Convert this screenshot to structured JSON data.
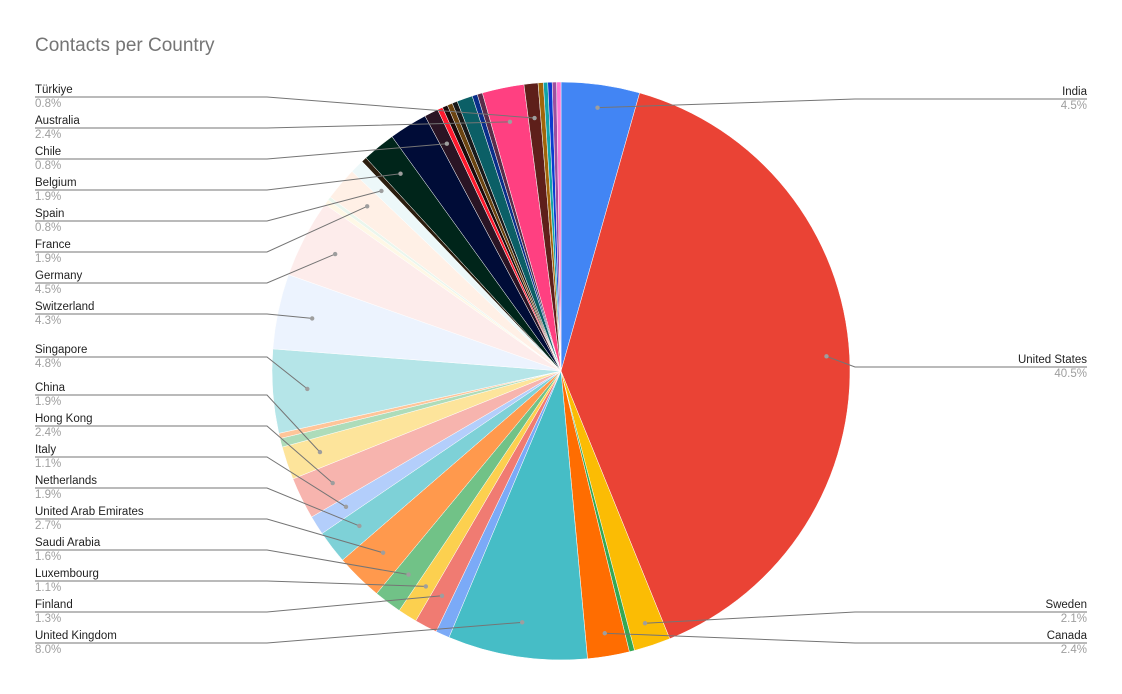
{
  "chart_data": {
    "type": "pie",
    "title": "Contacts per Country",
    "legend_position": "labeled",
    "center": [
      561,
      371
    ],
    "radius": 289,
    "slices": [
      {
        "name": "India",
        "value": 4.5,
        "color": "#4285f4",
        "labeled": true
      },
      {
        "name": "United States",
        "value": 40.5,
        "color": "#ea4335",
        "labeled": true
      },
      {
        "name": "Sweden",
        "value": 2.1,
        "color": "#fbbc04",
        "labeled": true
      },
      {
        "name": "",
        "value": 0.3,
        "color": "#34a853",
        "labeled": false
      },
      {
        "name": "Canada",
        "value": 2.4,
        "color": "#ff6d01",
        "labeled": true
      },
      {
        "name": "United Kingdom",
        "value": 8.0,
        "color": "#46bdc6",
        "labeled": true
      },
      {
        "name": "",
        "value": 0.8,
        "color": "#7baaf7",
        "labeled": false
      },
      {
        "name": "Finland",
        "value": 1.3,
        "color": "#f07b72",
        "labeled": true
      },
      {
        "name": "Luxembourg",
        "value": 1.1,
        "color": "#fcd04f",
        "labeled": true
      },
      {
        "name": "Saudi Arabia",
        "value": 1.6,
        "color": "#71c287",
        "labeled": true
      },
      {
        "name": "United Arab Emirates",
        "value": 2.7,
        "color": "#ff994d",
        "labeled": true
      },
      {
        "name": "Netherlands",
        "value": 1.9,
        "color": "#7ed1d7",
        "labeled": true
      },
      {
        "name": "Italy",
        "value": 1.1,
        "color": "#b3cefb",
        "labeled": true
      },
      {
        "name": "Hong Kong",
        "value": 2.4,
        "color": "#f7b4ae",
        "labeled": true
      },
      {
        "name": "China",
        "value": 1.9,
        "color": "#fde49b",
        "labeled": true
      },
      {
        "name": "",
        "value": 0.5,
        "color": "#aedcba",
        "labeled": false
      },
      {
        "name": "",
        "value": 0.3,
        "color": "#ffc599",
        "labeled": false
      },
      {
        "name": "Singapore",
        "value": 4.8,
        "color": "#b5e5e8",
        "labeled": true
      },
      {
        "name": "Switzerland",
        "value": 4.3,
        "color": "#ecf3fe",
        "labeled": true
      },
      {
        "name": "Germany",
        "value": 4.5,
        "color": "#fdeceb",
        "labeled": true
      },
      {
        "name": "",
        "value": 0.3,
        "color": "#fef8e6",
        "labeled": false
      },
      {
        "name": "",
        "value": 0.2,
        "color": "#eaf6ed",
        "labeled": false
      },
      {
        "name": "France",
        "value": 1.9,
        "color": "#fff0e6",
        "labeled": true
      },
      {
        "name": "Spain",
        "value": 0.8,
        "color": "#edf8f9",
        "labeled": true
      },
      {
        "name": "",
        "value": 0.3,
        "color": "#2b1d0e",
        "labeled": false
      },
      {
        "name": "Belgium",
        "value": 1.9,
        "color": "#00251a",
        "labeled": false
      },
      {
        "name": "",
        "value": 2.2,
        "color": "#000c37",
        "labeled": false
      },
      {
        "name": "Chile",
        "value": 0.8,
        "color": "#2a1424",
        "labeled": true
      },
      {
        "name": "",
        "value": 0.3,
        "color": "#ff1a2e",
        "labeled": false
      },
      {
        "name": "",
        "value": 0.3,
        "color": "#1a0a0a",
        "labeled": false
      },
      {
        "name": "",
        "value": 0.3,
        "color": "#6b4410",
        "labeled": false
      },
      {
        "name": "",
        "value": 0.3,
        "color": "#1a1a1a",
        "labeled": false
      },
      {
        "name": "",
        "value": 0.9,
        "color": "#0b5f66",
        "labeled": false
      },
      {
        "name": "",
        "value": 0.3,
        "color": "#0a2e8a",
        "labeled": false
      },
      {
        "name": "",
        "value": 0.3,
        "color": "#5a2d4a",
        "labeled": false
      },
      {
        "name": "Australia",
        "value": 2.4,
        "color": "#ff4081",
        "labeled": true
      },
      {
        "name": "Türkiye",
        "value": 0.8,
        "color": "#5e1f1a",
        "labeled": true
      },
      {
        "name": "",
        "value": 0.3,
        "color": "#a0650a",
        "labeled": false
      },
      {
        "name": "",
        "value": 0.25,
        "color": "#12a4a8",
        "labeled": false
      },
      {
        "name": "",
        "value": 0.25,
        "color": "#0b3ad0",
        "labeled": false
      },
      {
        "name": "",
        "value": 0.25,
        "color": "#9c4f9f",
        "labeled": false
      },
      {
        "name": "",
        "value": 0.25,
        "color": "#ff77d4",
        "labeled": false
      }
    ],
    "labels_left": [
      {
        "name": "Türkiye",
        "pct": "0.8%"
      },
      {
        "name": "Australia",
        "pct": "2.4%"
      },
      {
        "name": "Chile",
        "pct": "0.8%"
      },
      {
        "name": "Belgium",
        "pct": "1.9%"
      },
      {
        "name": "Spain",
        "pct": "0.8%"
      },
      {
        "name": "France",
        "pct": "1.9%"
      },
      {
        "name": "Germany",
        "pct": "4.5%"
      },
      {
        "name": "Switzerland",
        "pct": "4.3%"
      },
      {
        "name": "Singapore",
        "pct": "4.8%"
      },
      {
        "name": "China",
        "pct": "1.9%"
      },
      {
        "name": "Hong Kong",
        "pct": "2.4%"
      },
      {
        "name": "Italy",
        "pct": "1.1%"
      },
      {
        "name": "Netherlands",
        "pct": "1.9%"
      },
      {
        "name": "United Arab Emirates",
        "pct": "2.7%"
      },
      {
        "name": "Saudi Arabia",
        "pct": "1.6%"
      },
      {
        "name": "Luxembourg",
        "pct": "1.1%"
      },
      {
        "name": "Finland",
        "pct": "1.3%"
      },
      {
        "name": "United Kingdom",
        "pct": "8.0%"
      }
    ],
    "labels_right": [
      {
        "name": "India",
        "pct": "4.5%"
      },
      {
        "name": "United States",
        "pct": "40.5%"
      },
      {
        "name": "Sweden",
        "pct": "2.1%"
      },
      {
        "name": "Canada",
        "pct": "2.4%"
      }
    ]
  }
}
